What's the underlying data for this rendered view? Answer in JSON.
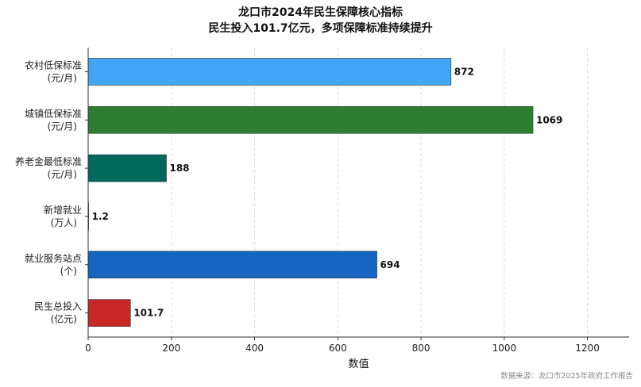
{
  "chart_data": {
    "type": "bar",
    "orientation": "horizontal",
    "title_lines": [
      "龙口市2024年民生保障核心指标",
      "民生投入101.7亿元，多项保障标准持续提升"
    ],
    "categories": [
      [
        "农村低保标准",
        "(元/月)"
      ],
      [
        "城镇低保标准",
        "(元/月)"
      ],
      [
        "养老金最低标准",
        "(元/月)"
      ],
      [
        "新增就业",
        "(万人)"
      ],
      [
        "就业服务站点",
        "(个)"
      ],
      [
        "民生总投入",
        "(亿元)"
      ]
    ],
    "values": [
      872,
      1069,
      188,
      1.2,
      694,
      101.7
    ],
    "value_labels": [
      "872",
      "1069",
      "188",
      "1.2",
      "694",
      "101.7"
    ],
    "colors": [
      "#42a5f5",
      "#2e7d32",
      "#00695c",
      "#9e9e9e",
      "#1565c0",
      "#c62828"
    ],
    "xlabel": "数值",
    "xlim": [
      0,
      1300
    ],
    "xticks": [
      0,
      200,
      400,
      600,
      800,
      1000,
      1200
    ],
    "grid": "vertical dashed",
    "source": "数据来源：龙口市2025年政府工作报告"
  }
}
